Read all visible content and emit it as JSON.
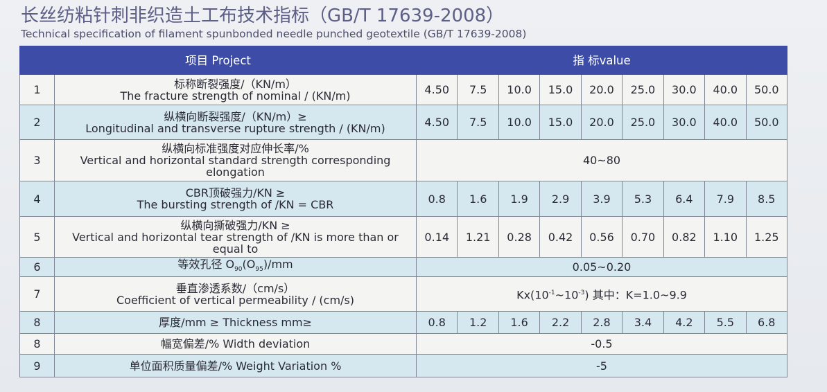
{
  "title": "长丝纺粘针刺非织造土工布技术指标（GB/T 17639-2008）",
  "subtitle": "Technical specification of filament spunbonded needle punched geotextile (GB/T 17639-2008)",
  "header": {
    "project": "项目 Project",
    "value": "指  标value"
  },
  "rows": [
    {
      "no": "1",
      "label_cn": "标称断裂强度/（KN/m）",
      "label_en": "The fracture strength of nominal / (KN/m)",
      "values": [
        "4.50",
        "7.5",
        "10.0",
        "15.0",
        "20.0",
        "25.0",
        "30.0",
        "40.0",
        "50.0"
      ]
    },
    {
      "no": "2",
      "label_cn": "纵横向断裂强度/（KN/m）≥",
      "label_en": "Longitudinal and transverse rupture strength / (KN/m)",
      "values": [
        "4.50",
        "7.5",
        "10.0",
        "15.0",
        "20.0",
        "25.0",
        "30.0",
        "40.0",
        "50.0"
      ]
    },
    {
      "no": "3",
      "label_cn": "纵横向标准强度对应伸长率/%",
      "label_en": "Vertical and horizontal standard strength corresponding elongation",
      "span": "40~80"
    },
    {
      "no": "4",
      "label_cn": "CBR顶破强力/KN ≥",
      "label_en": "The bursting strength of /KN = CBR",
      "values": [
        "0.8",
        "1.6",
        "1.9",
        "2.9",
        "3.9",
        "5.3",
        "6.4",
        "7.9",
        "8.5"
      ]
    },
    {
      "no": "5",
      "label_cn": "纵横向撕破强力/KN ≥",
      "label_en": "Vertical and horizontal tear strength of /KN is more than or equal to",
      "values": [
        "0.14",
        "1.21",
        "0.28",
        "0.42",
        "0.56",
        "0.70",
        "0.82",
        "1.10",
        "1.25"
      ]
    },
    {
      "no": "6",
      "label_parts": [
        "等效孔径 O",
        "90",
        "(O",
        "95",
        ")/mm"
      ],
      "span": "0.05~0.20"
    },
    {
      "no": "7",
      "label_cn": "垂直渗透系数/（cm/s）",
      "label_en": "Coefficient of vertical permeability / (cm/s)",
      "span_parts": [
        "Kx(10",
        "-1",
        "~10",
        "-3",
        ")  其中：K=1.0~9.9"
      ]
    },
    {
      "no": "8",
      "label": "厚度/mm ≥  Thickness mm≥",
      "values": [
        "0.8",
        "1.2",
        "1.6",
        "2.2",
        "2.8",
        "3.4",
        "4.2",
        "5.5",
        "6.8"
      ]
    },
    {
      "no": "8",
      "label": "幅宽偏差/% Width deviation",
      "span": "-0.5"
    },
    {
      "no": "9",
      "label": "单位面积质量偏差/% Weight Variation %",
      "span": "-5"
    }
  ]
}
